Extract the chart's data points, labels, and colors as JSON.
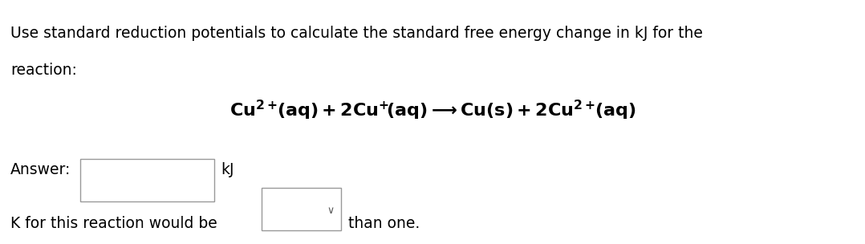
{
  "background_color": "#ffffff",
  "line1": "Use standard reduction potentials to calculate the standard free energy change in kJ for the",
  "line2": "reaction:",
  "answer_label": "Answer:",
  "answer_unit": "kJ",
  "bottom_pre": "K for this reaction would be",
  "bottom_post": "than one.",
  "text_color": "#000000",
  "font_size_body": 13.5,
  "font_size_eq": 16,
  "box_edge_color": "#999999",
  "chevron": "∨",
  "eq_left": "Cu",
  "eq_sup1": "2+",
  "eq_mid1": "(aq) + 2Cu",
  "eq_sup2": "+",
  "eq_mid2": "(aq)—→Cu(s) + 2Cu",
  "eq_sup3": "2+",
  "eq_mid3": "(aq)"
}
